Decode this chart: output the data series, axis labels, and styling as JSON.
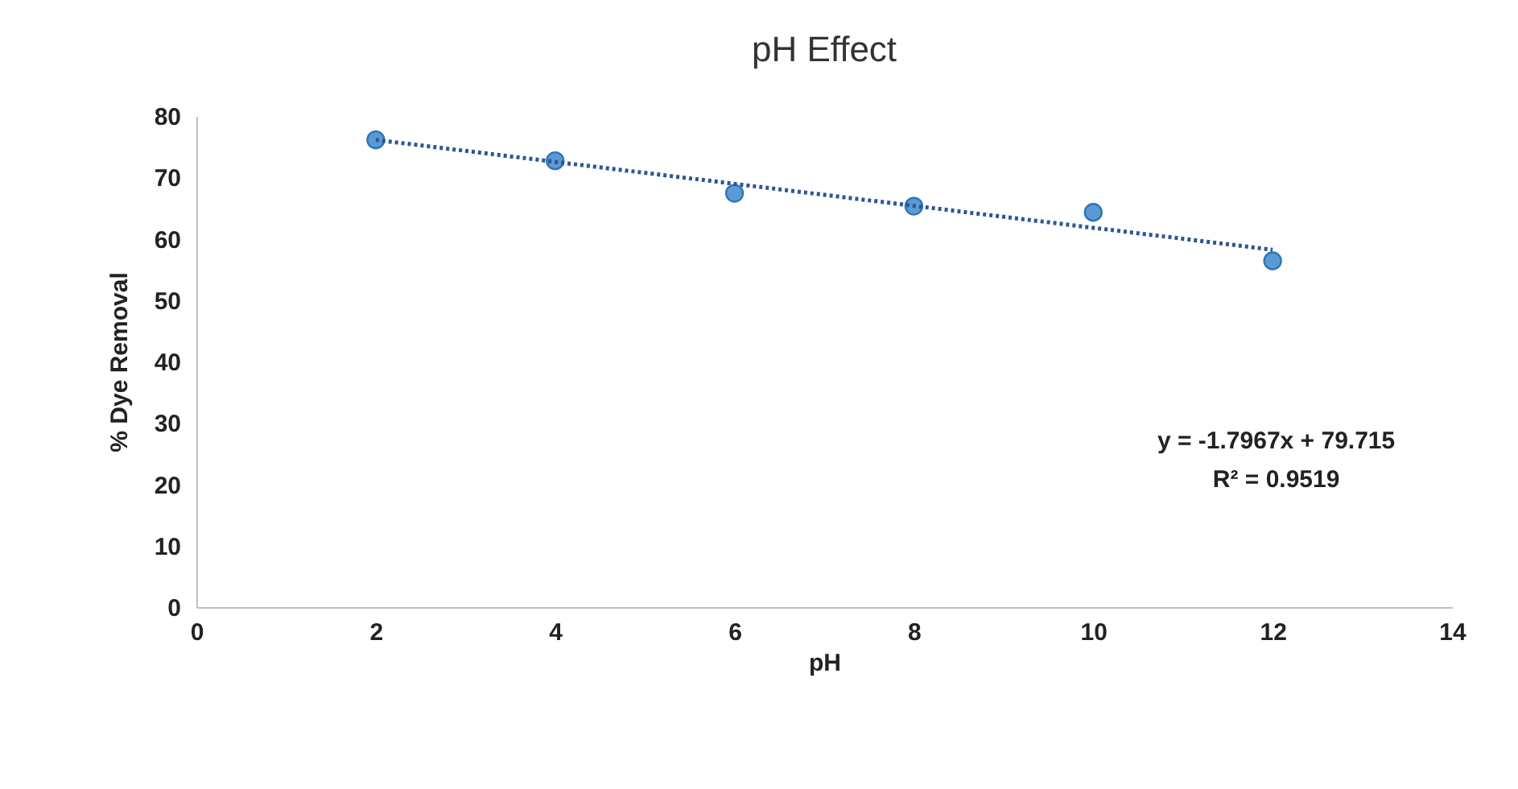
{
  "chart_data": {
    "type": "scatter",
    "title": "pH Effect",
    "xlabel": "pH",
    "ylabel": "% Dye Removal",
    "x": [
      2,
      4,
      6,
      8,
      10,
      12
    ],
    "series": [
      {
        "color": "#5b9bd5",
        "values": [
          76.1,
          72.7,
          67.4,
          65.3,
          64.3,
          56.4
        ],
        "marker": "circle"
      },
      {
        "type": "line",
        "color": "#2f5597",
        "x": [
          2,
          12
        ],
        "values": [
          76.1,
          58.2
        ],
        "line_style": "dotted"
      }
    ],
    "xlim": [
      0,
      14
    ],
    "xticks": [
      0,
      2,
      4,
      6,
      8,
      10,
      12,
      14
    ],
    "ylim": [
      0,
      80
    ],
    "yticks": [
      0,
      10,
      20,
      30,
      40,
      50,
      60,
      70,
      80
    ],
    "grid": false,
    "annotations": [
      "y = -1.7967x + 79.715",
      "R² = 0.9519"
    ]
  }
}
